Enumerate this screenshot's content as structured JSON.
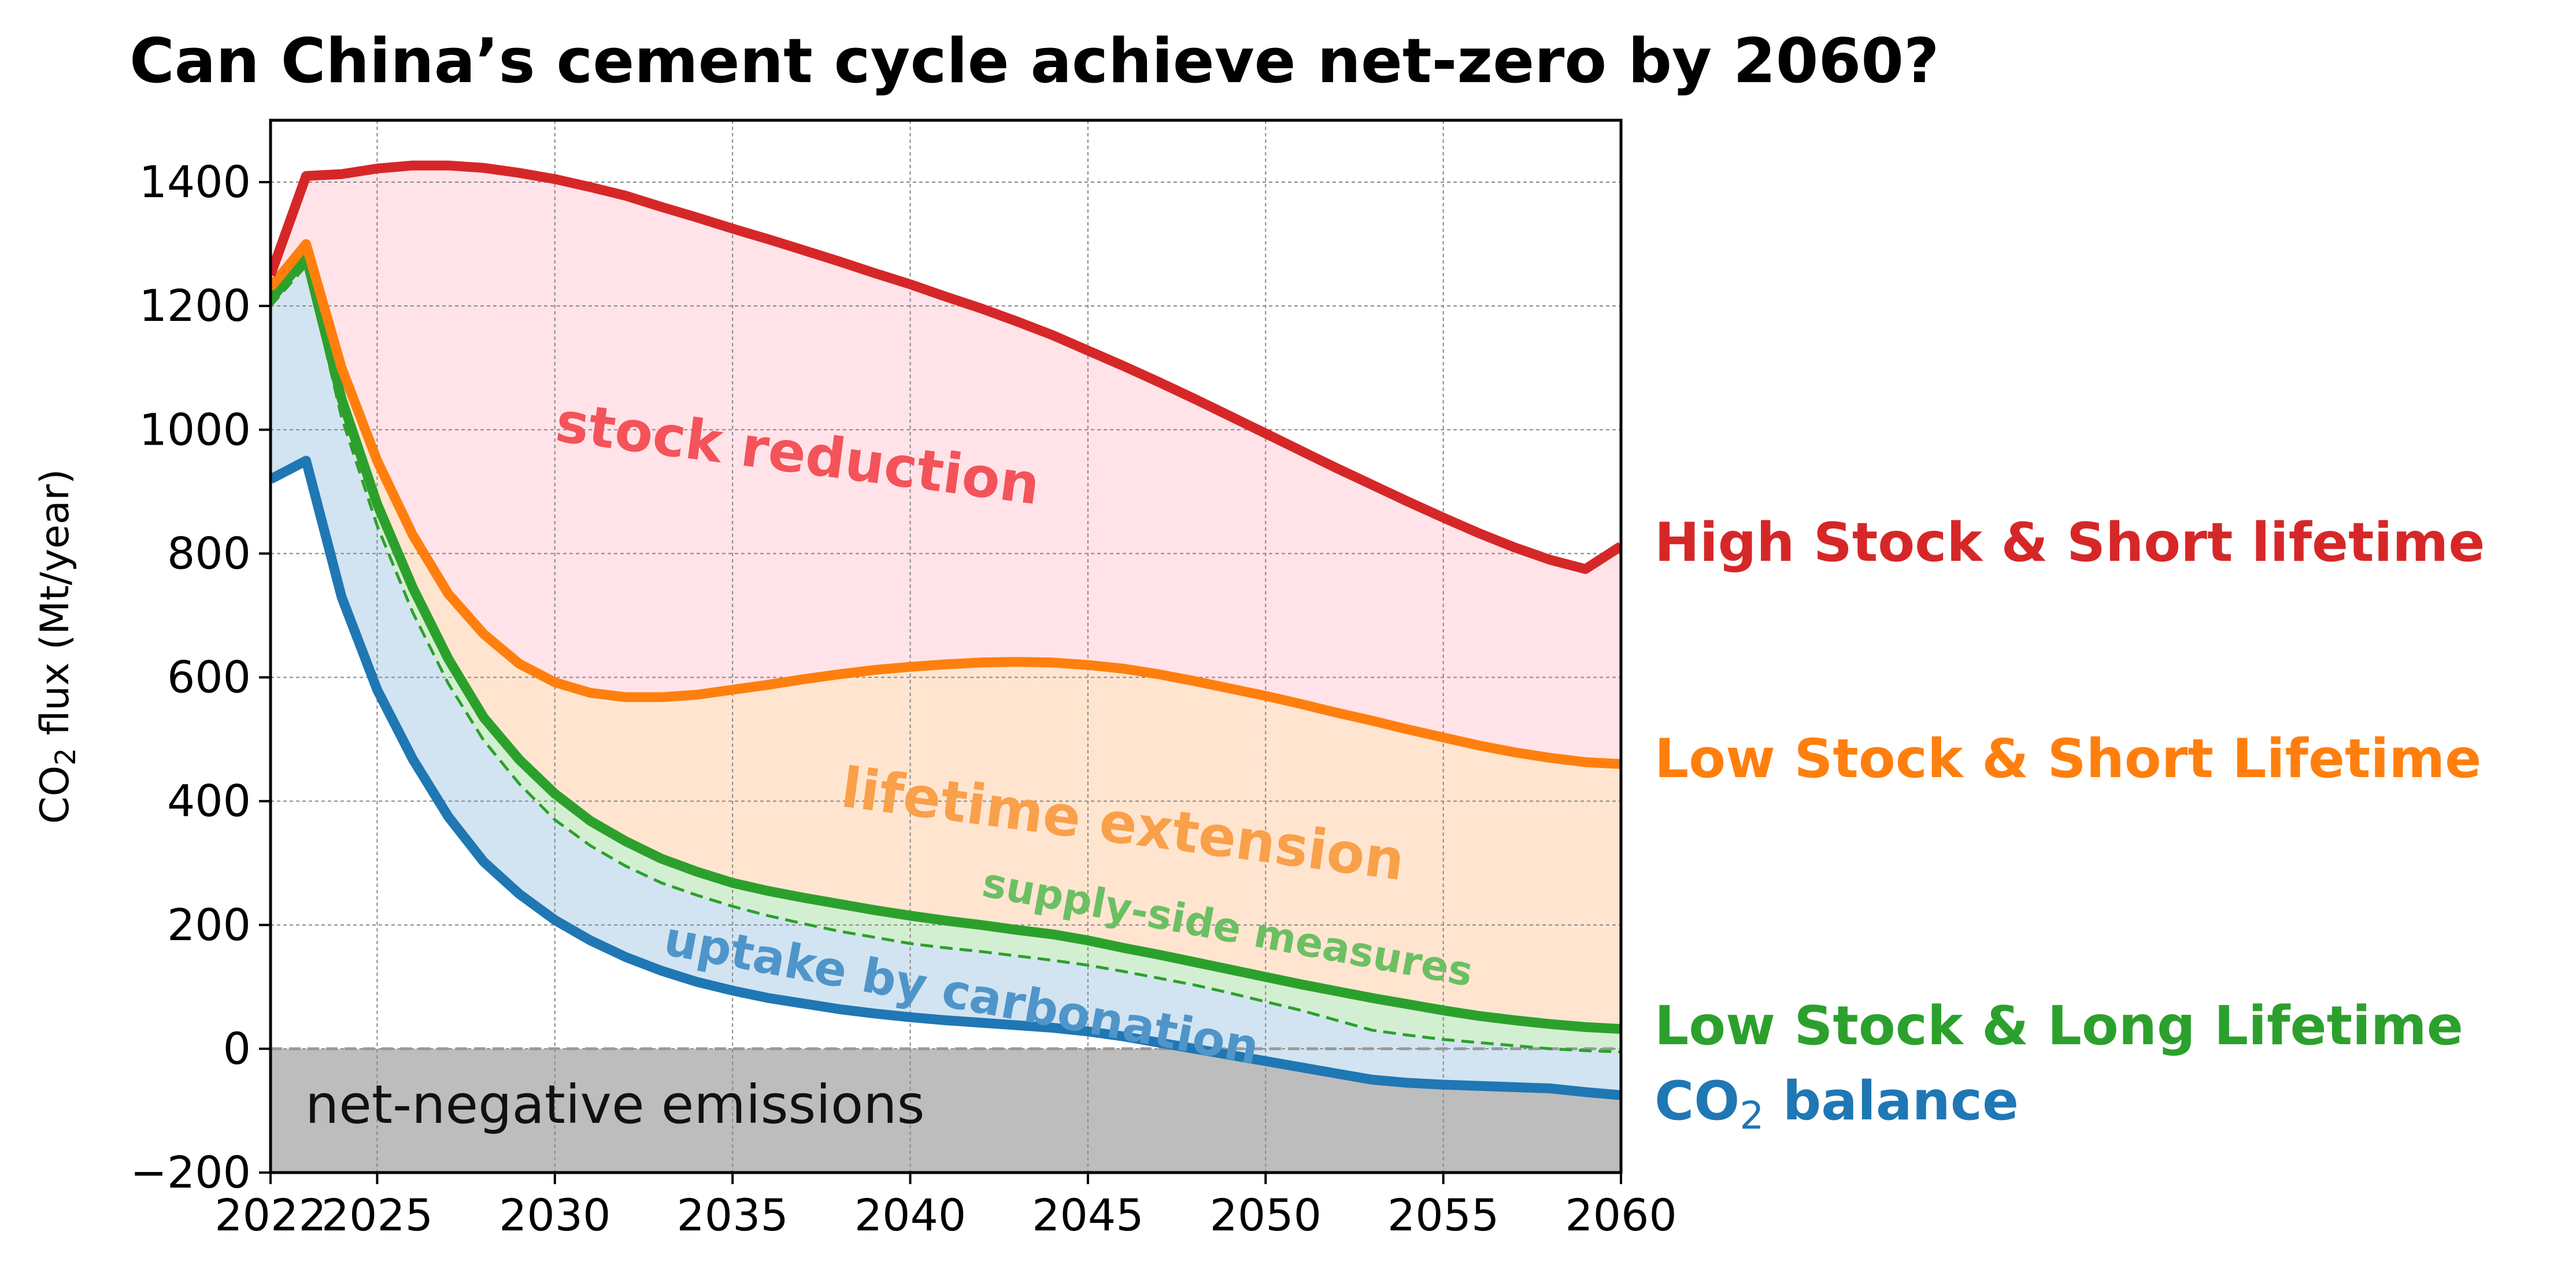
{
  "chart_data": {
    "type": "area",
    "title": "Can China’s cement cycle achieve net-zero by 2060?",
    "ylabel": {
      "main": "CO",
      "sub": "2",
      "rest": " flux (Mt/year)"
    },
    "xlim": [
      2022,
      2060
    ],
    "ylim": [
      -200,
      1500
    ],
    "x_ticks": [
      "2022",
      "2025",
      "2030",
      "2035",
      "2040",
      "2045",
      "2050",
      "2055",
      "2060"
    ],
    "y_ticks": [
      "−200",
      "0",
      "200",
      "400",
      "600",
      "800",
      "1000",
      "1200",
      "1400"
    ],
    "grid": true,
    "series": [
      {
        "name": "High Stock & Short lifetime",
        "color": "#d62728",
        "x": [
          2022,
          2023,
          2024,
          2025,
          2026,
          2027,
          2028,
          2029,
          2030,
          2031,
          2032,
          2033,
          2034,
          2035,
          2036,
          2037,
          2038,
          2039,
          2040,
          2041,
          2042,
          2043,
          2044,
          2045,
          2046,
          2047,
          2048,
          2049,
          2050,
          2051,
          2052,
          2053,
          2054,
          2055,
          2056,
          2057,
          2058,
          2059,
          2060
        ],
        "values": [
          1250,
          1410,
          1413,
          1422,
          1427,
          1427,
          1423,
          1415,
          1405,
          1392,
          1378,
          1360,
          1343,
          1325,
          1308,
          1290,
          1272,
          1253,
          1235,
          1215,
          1196,
          1175,
          1153,
          1128,
          1103,
          1077,
          1050,
          1022,
          994,
          966,
          938,
          911,
          884,
          858,
          833,
          810,
          790,
          775,
          812
        ]
      },
      {
        "name": "Low Stock & Short Lifetime",
        "color": "#ff7f0e",
        "x": [
          2022,
          2023,
          2024,
          2025,
          2026,
          2027,
          2028,
          2029,
          2030,
          2031,
          2032,
          2033,
          2034,
          2035,
          2036,
          2037,
          2038,
          2039,
          2040,
          2041,
          2042,
          2043,
          2044,
          2045,
          2046,
          2047,
          2048,
          2049,
          2050,
          2051,
          2052,
          2053,
          2054,
          2055,
          2056,
          2057,
          2058,
          2059,
          2060
        ],
        "values": [
          1230,
          1300,
          1100,
          950,
          830,
          735,
          670,
          622,
          592,
          575,
          568,
          568,
          572,
          580,
          588,
          597,
          605,
          612,
          617,
          621,
          624,
          625,
          624,
          620,
          614,
          605,
          594,
          582,
          570,
          557,
          543,
          530,
          516,
          503,
          490,
          479,
          470,
          463,
          460
        ]
      },
      {
        "name": "Low Stock & Long Lifetime",
        "color": "#2ca02c",
        "x": [
          2022,
          2023,
          2024,
          2025,
          2026,
          2027,
          2028,
          2029,
          2030,
          2031,
          2032,
          2033,
          2034,
          2035,
          2036,
          2037,
          2038,
          2039,
          2040,
          2041,
          2042,
          2043,
          2044,
          2045,
          2046,
          2047,
          2048,
          2049,
          2050,
          2051,
          2052,
          2053,
          2054,
          2055,
          2056,
          2057,
          2058,
          2059,
          2060
        ],
        "values": [
          1210,
          1280,
          1050,
          880,
          745,
          630,
          535,
          467,
          412,
          368,
          335,
          307,
          286,
          268,
          255,
          244,
          234,
          224,
          215,
          207,
          200,
          192,
          185,
          175,
          163,
          152,
          140,
          128,
          116,
          104,
          93,
          82,
          72,
          62,
          53,
          46,
          40,
          35,
          32
        ]
      },
      {
        "name": "supply-side measures (dashed)",
        "color": "#2ca02c",
        "dashed": true,
        "x": [
          2022,
          2023,
          2024,
          2025,
          2026,
          2027,
          2028,
          2029,
          2030,
          2031,
          2032,
          2033,
          2034,
          2035,
          2036,
          2037,
          2038,
          2039,
          2040,
          2041,
          2042,
          2043,
          2044,
          2045,
          2046,
          2047,
          2048,
          2049,
          2050,
          2051,
          2052,
          2053,
          2054,
          2055,
          2056,
          2057,
          2058,
          2059,
          2060
        ],
        "values": [
          1200,
          1265,
          1020,
          845,
          705,
          590,
          498,
          428,
          370,
          328,
          295,
          268,
          248,
          230,
          215,
          202,
          190,
          180,
          170,
          163,
          157,
          150,
          143,
          135,
          125,
          114,
          103,
          90,
          76,
          62,
          46,
          30,
          22,
          15,
          10,
          5,
          0,
          -3,
          -5
        ]
      },
      {
        "name": "CO2 balance",
        "color": "#1f77b4",
        "x": [
          2022,
          2023,
          2024,
          2025,
          2026,
          2027,
          2028,
          2029,
          2030,
          2031,
          2032,
          2033,
          2034,
          2035,
          2036,
          2037,
          2038,
          2039,
          2040,
          2041,
          2042,
          2043,
          2044,
          2045,
          2046,
          2047,
          2048,
          2049,
          2050,
          2051,
          2052,
          2053,
          2054,
          2055,
          2056,
          2057,
          2058,
          2059,
          2060
        ],
        "values": [
          920,
          950,
          730,
          580,
          468,
          375,
          302,
          250,
          208,
          175,
          148,
          126,
          108,
          94,
          82,
          73,
          64,
          57,
          51,
          46,
          42,
          38,
          34,
          28,
          20,
          10,
          0,
          -10,
          -20,
          -30,
          -40,
          -50,
          -55,
          -58,
          -60,
          -62,
          -64,
          -70,
          -75
        ]
      }
    ],
    "end_labels": [
      {
        "text": "High Stock & Short lifetime",
        "color": "#d62728"
      },
      {
        "text": "Low Stock & Short Lifetime",
        "color": "#ff7f0e"
      },
      {
        "text": "Low Stock & Long Lifetime",
        "color": "#2ca02c"
      },
      {
        "text": "CO",
        "sub": "2",
        "rest": " balance",
        "color": "#1f77b4"
      }
    ],
    "annotations": [
      {
        "text": "stock reduction",
        "color": "#f4535a"
      },
      {
        "text": "lifetime extension",
        "color": "#f9a04a"
      },
      {
        "text": "supply-side measures",
        "color": "#6cbf63"
      },
      {
        "text": "uptake by carbonation",
        "color": "#4f95c9"
      },
      {
        "text": "net-negative emissions",
        "color": "#111111"
      }
    ],
    "fills": {
      "stock_reduction": "#ffe3e8",
      "lifetime_extension": "#ffe5d0",
      "supply_side": "#d3efd1",
      "carbonation": "#d2e4f1",
      "net_negative": "#bdbdbd"
    }
  }
}
